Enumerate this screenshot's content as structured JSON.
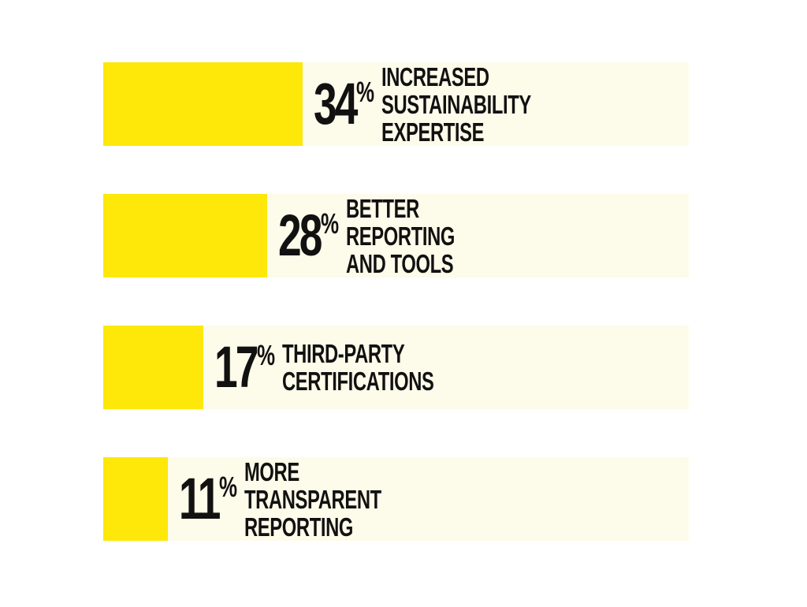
{
  "chart_data": {
    "type": "bar",
    "orientation": "horizontal",
    "categories": [
      "INCREASED\nSUSTAINABILITY EXPERTISE",
      "BETTER REPORTING\nAND TOOLS",
      "THIRD-PARTY\nCERTIFICATIONS",
      "MORE TRANSPARENT\nREPORTING"
    ],
    "values": [
      34,
      28,
      17,
      11
    ],
    "value_labels": [
      "34",
      "28",
      "17",
      "11"
    ],
    "unit": "%",
    "xlim": [
      0,
      100
    ],
    "grid": false,
    "legend": "none"
  },
  "colors": {
    "bar_fill": "#fde80a",
    "bar_track": "#fdfbe9",
    "text": "#111111",
    "background": "#ffffff"
  }
}
